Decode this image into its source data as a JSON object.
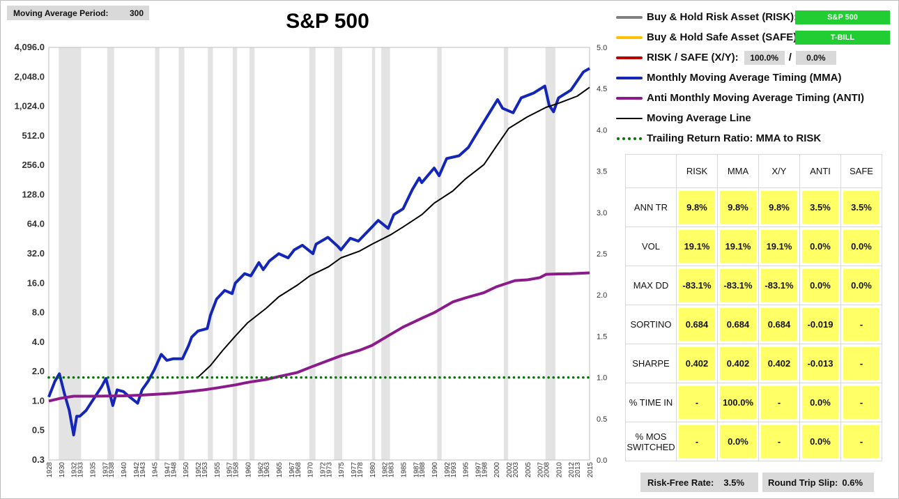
{
  "header": {
    "period_label": "Moving Average Period:",
    "period_value": "300"
  },
  "chart_data": {
    "type": "line",
    "title": "S&P 500",
    "y_scale": "log2",
    "y_ticks": [
      "4,096.0",
      "2,048.0",
      "1,024.0",
      "512.0",
      "256.0",
      "128.0",
      "64.0",
      "32.0",
      "16.0",
      "8.0",
      "4.0",
      "2.0",
      "1.0",
      "0.5",
      "0.3"
    ],
    "y_tick_values": [
      4096,
      2048,
      1024,
      512,
      256,
      128,
      64,
      32,
      16,
      8,
      4,
      2,
      1,
      0.5,
      0.25
    ],
    "y2_ticks": [
      "5.0",
      "4.5",
      "4.0",
      "3.5",
      "3.0",
      "2.5",
      "2.0",
      "1.5",
      "1.0",
      "0.5",
      "0.0"
    ],
    "y2_tick_values": [
      5.0,
      4.5,
      4.0,
      3.5,
      3.0,
      2.5,
      2.0,
      1.5,
      1.0,
      0.5,
      0.0
    ],
    "xlim": [
      1928,
      2015
    ],
    "x_ticks": [
      1928,
      1930,
      1932,
      1933,
      1935,
      1937,
      1938,
      1940,
      1942,
      1943,
      1945,
      1947,
      1948,
      1950,
      1952,
      1953,
      1955,
      1957,
      1958,
      1960,
      1962,
      1963,
      1965,
      1967,
      1968,
      1970,
      1972,
      1973,
      1975,
      1977,
      1978,
      1980,
      1982,
      1983,
      1985,
      1987,
      1988,
      1990,
      1992,
      1993,
      1995,
      1997,
      1998,
      2000,
      2002,
      2003,
      2005,
      2007,
      2008,
      2010,
      2012,
      2013,
      2015
    ],
    "recession_bands": [
      [
        1929.6,
        1933.2
      ],
      [
        1937.4,
        1938.5
      ],
      [
        1945.1,
        1945.8
      ],
      [
        1948.9,
        1949.8
      ],
      [
        1953.6,
        1954.4
      ],
      [
        1957.6,
        1958.3
      ],
      [
        1960.3,
        1961.1
      ],
      [
        1969.9,
        1970.9
      ],
      [
        1973.9,
        1975.2
      ],
      [
        1980.0,
        1980.5
      ],
      [
        1981.5,
        1982.9
      ],
      [
        1990.5,
        1991.2
      ],
      [
        2001.2,
        2001.9
      ],
      [
        2007.9,
        2009.5
      ]
    ],
    "series": [
      {
        "name": "Monthly Moving Average Timing (MMA)",
        "axis": "left",
        "x": [
          1928,
          1929,
          1929.7,
          1930.5,
          1931.3,
          1932,
          1932.5,
          1933,
          1934,
          1935,
          1936.5,
          1937.2,
          1938.3,
          1939,
          1940,
          1941,
          1942.3,
          1943,
          1944,
          1945,
          1946.1,
          1947,
          1948,
          1949.5,
          1950.5,
          1951,
          1952,
          1953.5,
          1954,
          1955,
          1956.3,
          1957.5,
          1958,
          1959.5,
          1960.5,
          1961.8,
          1962.5,
          1963.5,
          1965,
          1966.5,
          1967.5,
          1968.8,
          1970.5,
          1971,
          1972.9,
          1974.5,
          1975,
          1976.5,
          1977.8,
          1980,
          1981,
          1982.6,
          1983.5,
          1985,
          1986.5,
          1987.6,
          1988,
          1990,
          1990.8,
          1992,
          1994,
          1995.5,
          1997,
          1998.5,
          2000.2,
          2001,
          2002.7,
          2004,
          2006,
          2007.8,
          2008.5,
          2009.2,
          2010,
          2012,
          2014,
          2015
        ],
        "y": [
          1.1,
          1.6,
          1.9,
          1.2,
          0.8,
          0.45,
          0.7,
          0.7,
          0.8,
          1.0,
          1.4,
          1.7,
          0.9,
          1.3,
          1.25,
          1.1,
          0.95,
          1.3,
          1.6,
          2.1,
          3.0,
          2.6,
          2.7,
          2.7,
          3.7,
          4.5,
          5.2,
          5.5,
          7.5,
          11,
          13.5,
          12.5,
          16,
          20,
          19,
          26,
          22,
          27,
          32,
          29,
          35,
          39,
          32,
          40,
          47,
          38,
          35,
          46,
          43,
          60,
          70,
          58,
          80,
          92,
          145,
          190,
          170,
          240,
          200,
          300,
          320,
          390,
          560,
          800,
          1200,
          980,
          880,
          1250,
          1400,
          1650,
          1050,
          900,
          1250,
          1500,
          2300,
          2500
        ]
      },
      {
        "name": "Anti Monthly Moving Average Timing (ANTI)",
        "axis": "left",
        "x": [
          1928,
          1930,
          1932,
          1935,
          1940,
          1943,
          1945,
          1948,
          1950,
          1953,
          1955,
          1958,
          1960,
          1963,
          1965,
          1968,
          1970,
          1973,
          1975,
          1978,
          1980,
          1983,
          1985,
          1988,
          1990,
          1993,
          1995,
          1998,
          2000,
          2003,
          2005,
          2007,
          2008,
          2010,
          2012,
          2015
        ],
        "y": [
          1.0,
          1.07,
          1.12,
          1.12,
          1.13,
          1.15,
          1.17,
          1.2,
          1.24,
          1.3,
          1.36,
          1.46,
          1.55,
          1.66,
          1.78,
          1.96,
          2.2,
          2.6,
          2.9,
          3.3,
          3.7,
          4.8,
          5.7,
          7.0,
          8.0,
          10.3,
          11.3,
          12.8,
          14.7,
          17.0,
          17.3,
          18.2,
          19.7,
          19.9,
          20.0,
          20.4
        ]
      },
      {
        "name": "Moving Average Line",
        "axis": "left",
        "x": [
          1952,
          1954,
          1956,
          1958,
          1960,
          1963,
          1965,
          1968,
          1970,
          1973,
          1975,
          1978,
          1980,
          1983,
          1985,
          1988,
          1990,
          1993,
          1995,
          1998,
          2000,
          2002,
          2005,
          2008,
          2010,
          2013,
          2015
        ],
        "y": [
          1.75,
          2.3,
          3.3,
          4.6,
          6.3,
          8.9,
          11.6,
          15.3,
          19.0,
          23.5,
          29.0,
          34.0,
          40.0,
          50.0,
          60.0,
          80.0,
          105.0,
          140.0,
          185.0,
          260.0,
          400.0,
          610.0,
          800.0,
          1000.0,
          1100.0,
          1300.0,
          1600.0
        ]
      },
      {
        "name": "Trailing Return Ratio: MMA to RISK",
        "axis": "right",
        "x": [
          1928,
          2015
        ],
        "y": [
          1.0,
          1.0
        ]
      }
    ]
  },
  "legend": {
    "risk_label": "Buy & Hold Risk Asset (RISK):",
    "risk_asset": "S&P 500",
    "safe_label": "Buy & Hold Safe Asset (SAFE):",
    "safe_asset": "T-BILL",
    "xy_label": "RISK / SAFE (X/Y):",
    "xy_risk": "100.0%",
    "xy_sep": "/",
    "xy_safe": "0.0%",
    "mma_label": "Monthly Moving Average Timing (MMA)",
    "anti_label": "Anti Monthly Moving Average Timing (ANTI)",
    "ma_label": "Moving Average Line",
    "ratio_label": "Trailing Return Ratio: MMA to RISK"
  },
  "colors": {
    "risk": "#808080",
    "safe": "#ffc000",
    "xy": "#c00000",
    "mma": "#1426b8",
    "anti": "#8b1a8b",
    "ma": "#000000",
    "ratio": "#0a6e0a",
    "band": "#e3e3e3",
    "tag_green": "#22cc33",
    "cell_yellow": "#ffff66"
  },
  "stats": {
    "columns": [
      "RISK",
      "MMA",
      "X/Y",
      "ANTI",
      "SAFE"
    ],
    "rows": [
      {
        "label": "ANN TR",
        "values": [
          "9.8%",
          "9.8%",
          "9.8%",
          "3.5%",
          "3.5%"
        ]
      },
      {
        "label": "VOL",
        "values": [
          "19.1%",
          "19.1%",
          "19.1%",
          "0.0%",
          "0.0%"
        ]
      },
      {
        "label": "MAX DD",
        "values": [
          "-83.1%",
          "-83.1%",
          "-83.1%",
          "0.0%",
          "0.0%"
        ]
      },
      {
        "label": "SORTINO",
        "values": [
          "0.684",
          "0.684",
          "0.684",
          "-0.019",
          "-"
        ]
      },
      {
        "label": "SHARPE",
        "values": [
          "0.402",
          "0.402",
          "0.402",
          "-0.013",
          "-"
        ]
      },
      {
        "label": "% TIME IN",
        "values": [
          "-",
          "100.0%",
          "-",
          "0.0%",
          "-"
        ]
      },
      {
        "label": "% MOS SWITCHED",
        "values": [
          "-",
          "0.0%",
          "-",
          "0.0%",
          "-"
        ]
      }
    ]
  },
  "footer": {
    "rf_label": "Risk-Free Rate:",
    "rf_value": "3.5%",
    "slip_label": "Round Trip Slip:",
    "slip_value": "0.6%"
  }
}
